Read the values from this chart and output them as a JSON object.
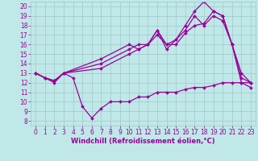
{
  "xlabel": "Windchill (Refroidissement éolien,°C)",
  "bg_color": "#c0e8e8",
  "grid_color": "#a0c8c8",
  "line_color": "#990099",
  "marker": "D",
  "markersize": 2,
  "linewidth": 0.9,
  "xlim": [
    -0.5,
    23.5
  ],
  "ylim": [
    7.5,
    20.5
  ],
  "xticks": [
    0,
    1,
    2,
    3,
    4,
    5,
    6,
    7,
    8,
    9,
    10,
    11,
    12,
    13,
    14,
    15,
    16,
    17,
    18,
    19,
    20,
    21,
    22,
    23
  ],
  "yticks": [
    8,
    9,
    10,
    11,
    12,
    13,
    14,
    15,
    16,
    17,
    18,
    19,
    20
  ],
  "tick_fontsize": 5.5,
  "xlabel_fontsize": 6,
  "lines": [
    {
      "x": [
        0,
        1,
        2,
        3,
        4,
        5,
        6,
        7,
        8,
        9,
        10,
        11,
        12,
        13,
        14,
        15,
        16,
        17,
        18,
        19,
        20,
        21,
        22,
        23
      ],
      "y": [
        13,
        12.5,
        12,
        13,
        12.5,
        9.5,
        8.3,
        9.3,
        10,
        10,
        10,
        10.5,
        10.5,
        11,
        11,
        11,
        11.3,
        11.5,
        11.5,
        11.7,
        12,
        12,
        12,
        12
      ]
    },
    {
      "x": [
        0,
        1,
        2,
        3,
        7,
        10,
        11,
        12,
        13,
        14,
        15,
        16,
        17,
        18,
        19,
        20,
        21,
        22,
        23
      ],
      "y": [
        13,
        12.5,
        12.2,
        13,
        14.5,
        16,
        15.5,
        16,
        17.5,
        16,
        16.5,
        18,
        19.5,
        20.5,
        19.5,
        19,
        16,
        12,
        11.5
      ]
    },
    {
      "x": [
        0,
        1,
        2,
        3,
        7,
        10,
        11,
        12,
        13,
        14,
        15,
        16,
        17,
        18,
        19,
        20,
        21,
        22,
        23
      ],
      "y": [
        13,
        12.5,
        12.2,
        13,
        14,
        15.5,
        16,
        16,
        17.5,
        15.5,
        16.5,
        17.5,
        19,
        18,
        19,
        18.5,
        16,
        12.5,
        12
      ]
    },
    {
      "x": [
        0,
        1,
        2,
        3,
        7,
        10,
        11,
        12,
        13,
        14,
        15,
        16,
        17,
        18,
        19,
        20,
        21,
        22,
        23
      ],
      "y": [
        13,
        12.5,
        12.2,
        13,
        13.5,
        15,
        15.5,
        16,
        17,
        16,
        16,
        17.2,
        18,
        18.2,
        19.5,
        19,
        16,
        13,
        12
      ]
    }
  ]
}
